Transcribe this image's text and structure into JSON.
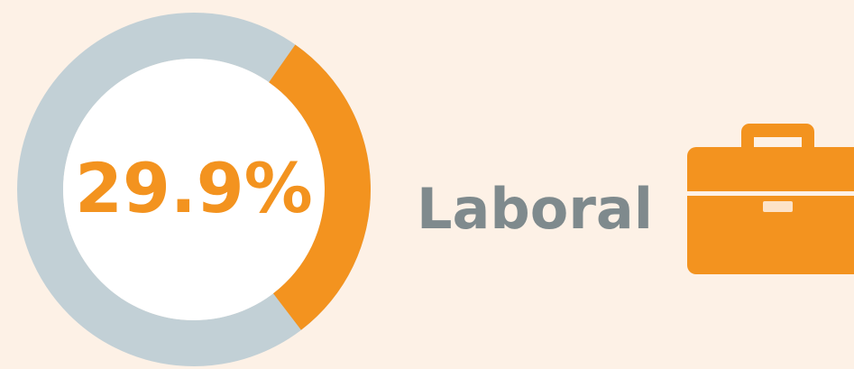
{
  "chart_data": {
    "type": "donut",
    "categories": [
      "Laboral"
    ],
    "values": [
      29.9
    ],
    "value_labels": [
      "29.9%"
    ],
    "color": "#f3931f",
    "track_color": "#c2d0d6"
  }
}
